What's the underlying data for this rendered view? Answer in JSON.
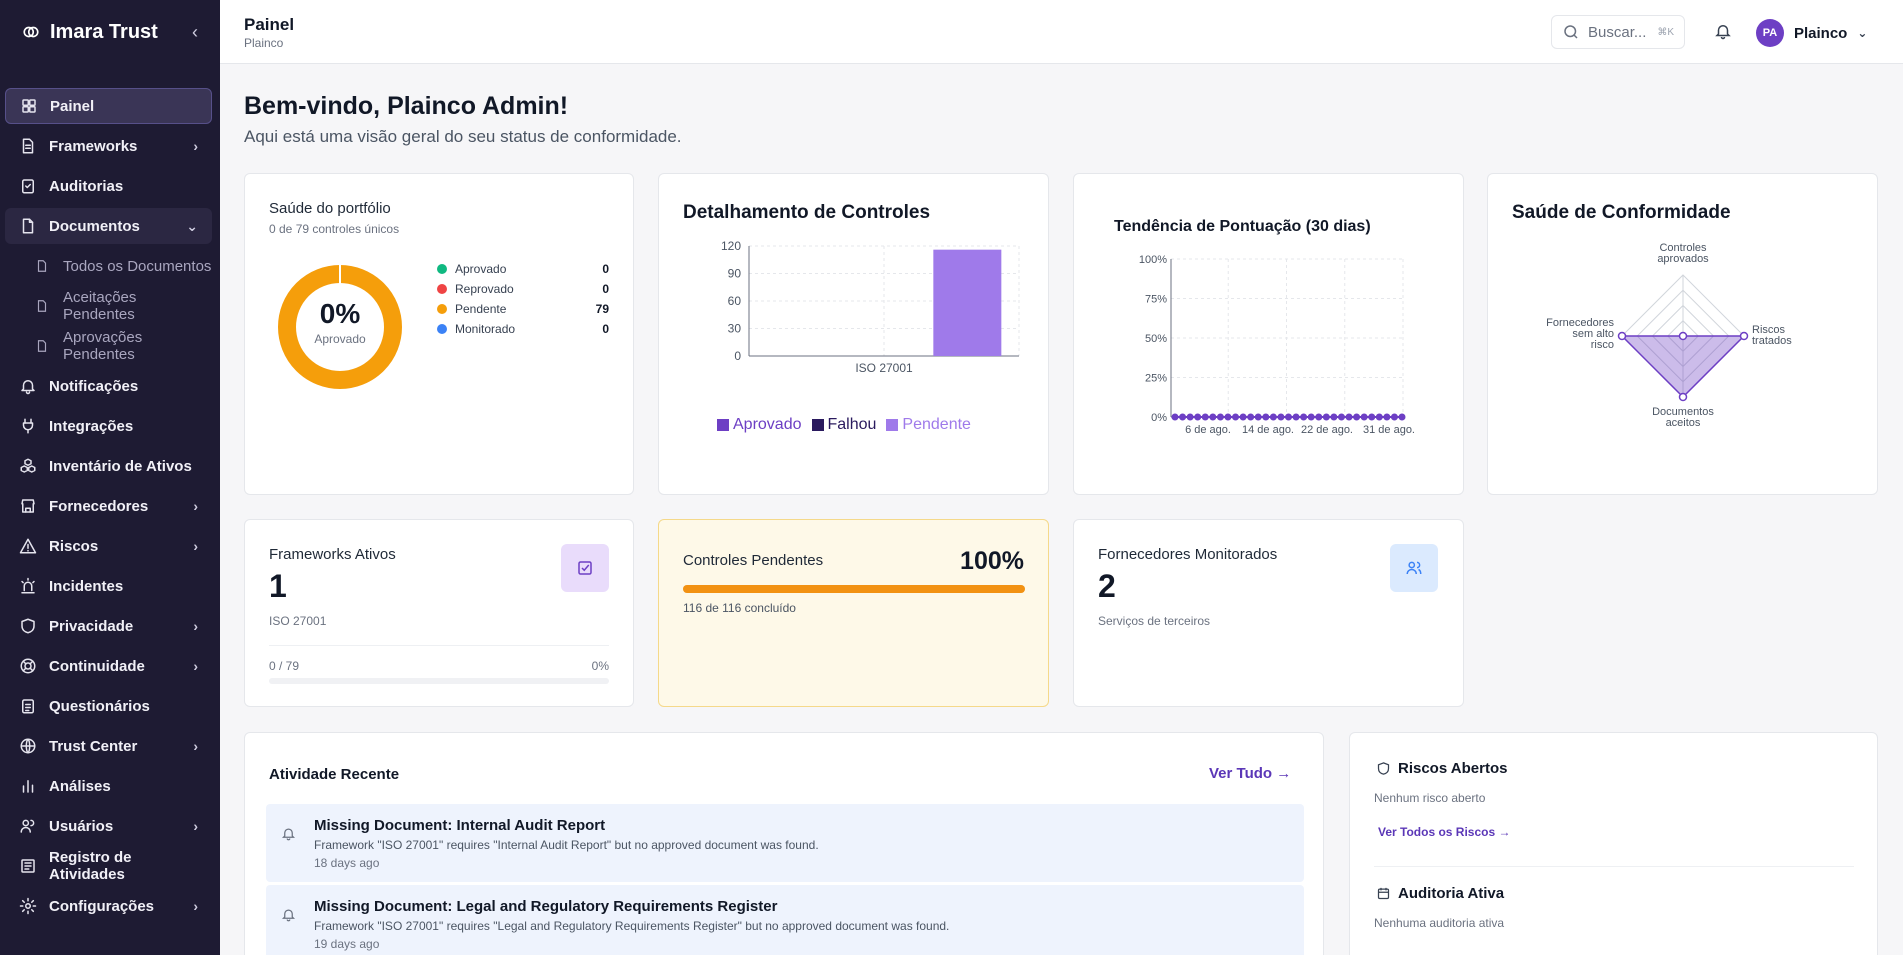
{
  "sidebar": {
    "brand": "Imara Trust",
    "items": [
      {
        "label": "Painel",
        "icon": "dashboard-icon",
        "active": true
      },
      {
        "label": "Frameworks",
        "icon": "file-text-icon",
        "chevron": true
      },
      {
        "label": "Auditorias",
        "icon": "clipboard-check-icon"
      },
      {
        "label": "Documentos",
        "icon": "file-icon",
        "open": true
      },
      {
        "label": "Notificações",
        "icon": "bell-icon"
      },
      {
        "label": "Integrações",
        "icon": "plug-icon"
      },
      {
        "label": "Inventário de Ativos",
        "icon": "boxes-icon"
      },
      {
        "label": "Fornecedores",
        "icon": "store-icon",
        "chevron": true
      },
      {
        "label": "Riscos",
        "icon": "warning-icon",
        "chevron": true
      },
      {
        "label": "Incidentes",
        "icon": "siren-icon"
      },
      {
        "label": "Privacidade",
        "icon": "shield-icon",
        "chevron": true
      },
      {
        "label": "Continuidade",
        "icon": "lifebuoy-icon",
        "chevron": true
      },
      {
        "label": "Questionários",
        "icon": "clipboard-list-icon"
      },
      {
        "label": "Trust Center",
        "icon": "globe-icon",
        "chevron": true
      },
      {
        "label": "Análises",
        "icon": "bar-chart-icon"
      },
      {
        "label": "Usuários",
        "icon": "users-icon",
        "chevron": true
      },
      {
        "label": "Registro de Atividades",
        "icon": "log-icon"
      },
      {
        "label": "Configurações",
        "icon": "gear-icon",
        "chevron": true
      }
    ],
    "documents_sub": [
      "Todos os Documentos",
      "Aceitações Pendentes",
      "Aprovações Pendentes"
    ]
  },
  "topbar": {
    "title": "Painel",
    "subtitle": "Plainco",
    "search_placeholder": "Buscar...",
    "search_shortcut": "⌘K",
    "user_initials": "PA",
    "user_name": "Plainco"
  },
  "welcome": {
    "title": "Bem-vindo, Plainco Admin!",
    "subtitle": "Aqui está uma visão geral do seu status de conformidade."
  },
  "portfolio": {
    "title": "Saúde do portfólio",
    "subtitle": "0 de 79 controles únicos",
    "percent": "0%",
    "percent_label": "Aprovado",
    "legend": [
      {
        "label": "Aprovado",
        "count": "0",
        "color": "#10b981"
      },
      {
        "label": "Reprovado",
        "count": "0",
        "color": "#ef4444"
      },
      {
        "label": "Pendente",
        "count": "79",
        "color": "#f59e0b"
      },
      {
        "label": "Monitorado",
        "count": "0",
        "color": "#3b82f6"
      }
    ]
  },
  "chart_data": [
    {
      "type": "bar",
      "title": "Detalhamento de Controles",
      "categories": [
        "ISO 27001"
      ],
      "series": [
        {
          "name": "Aprovado",
          "values": [
            0
          ],
          "color": "#6d3fc4"
        },
        {
          "name": "Falhou",
          "values": [
            0
          ],
          "color": "#2a1a5e"
        },
        {
          "name": "Pendente",
          "values": [
            116
          ],
          "color": "#9f7aea"
        }
      ],
      "yticks": [
        "0",
        "30",
        "60",
        "90",
        "120"
      ],
      "ylim": [
        0,
        120
      ]
    },
    {
      "type": "line",
      "title": "Tendência de Pontuação (30 dias)",
      "xticks": [
        "6 de ago.",
        "14 de ago.",
        "22 de ago.",
        "31 de ago."
      ],
      "yticks": [
        "0%",
        "25%",
        "50%",
        "75%",
        "100%"
      ],
      "ylim": [
        0,
        100
      ],
      "values": [
        0,
        0,
        0,
        0,
        0,
        0,
        0,
        0,
        0,
        0,
        0,
        0,
        0,
        0,
        0,
        0,
        0,
        0,
        0,
        0,
        0,
        0,
        0,
        0,
        0,
        0,
        0,
        0,
        0,
        0,
        0
      ],
      "color": "#6d3fc4"
    },
    {
      "type": "radar",
      "title": "Saúde de Conformidade",
      "axes": [
        "Controles aprovados",
        "Riscos tratados",
        "Documentos aceitos",
        "Fornecedores sem alto risco"
      ],
      "values": [
        0,
        100,
        100,
        100
      ],
      "color": "#6d3fc4"
    }
  ],
  "stats": {
    "frameworks": {
      "title": "Frameworks Ativos",
      "value": "1",
      "sub": "ISO 27001",
      "progress_label": "0 / 79",
      "progress_pct": "0%"
    },
    "pending": {
      "title": "Controles Pendentes",
      "value": "100%",
      "sub": "116 de 116 concluído",
      "progress": 1.0
    },
    "vendors": {
      "title": "Fornecedores Monitorados",
      "value": "2",
      "sub": "Serviços de terceiros"
    }
  },
  "activity": {
    "title": "Atividade Recente",
    "view_all": "Ver Tudo →",
    "items": [
      {
        "title": "Missing Document: Internal Audit Report",
        "desc": "Framework \"ISO 27001\" requires \"Internal Audit Report\" but no approved document was found.",
        "time": "18 days ago"
      },
      {
        "title": "Missing Document: Legal and Regulatory Requirements Register",
        "desc": "Framework \"ISO 27001\" requires \"Legal and Regulatory Requirements Register\" but no approved document was found.",
        "time": "19 days ago"
      }
    ]
  },
  "risks": {
    "title": "Riscos Abertos",
    "empty": "Nenhum risco aberto",
    "link": "Ver Todos os Riscos →",
    "audit_title": "Auditoria Ativa",
    "audit_empty": "Nenhuma auditoria ativa"
  }
}
